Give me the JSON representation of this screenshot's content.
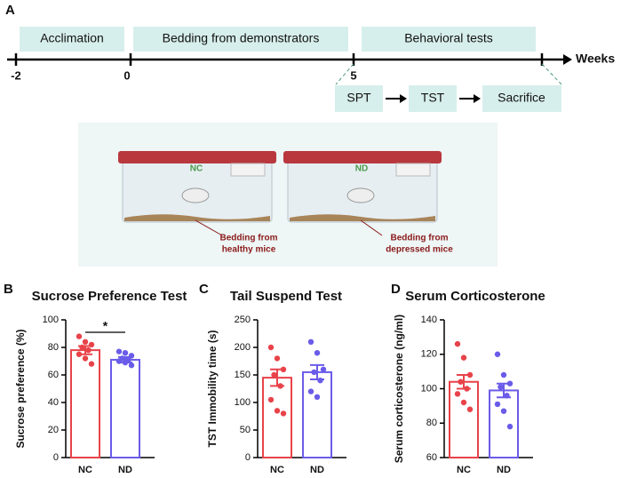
{
  "panel_labels": [
    "A",
    "B",
    "C",
    "D"
  ],
  "timeline": {
    "axis_title": "Weeks",
    "ticks": [
      "-2",
      "0",
      "5"
    ],
    "phases": [
      "Acclimation",
      "Bedding from demonstrators",
      "Behavioral tests"
    ],
    "steps": [
      "SPT",
      "TST",
      "Sacrifice"
    ]
  },
  "illustration": {
    "cages": [
      "NC",
      "ND"
    ],
    "bedding_labels": [
      [
        "Bedding from",
        "healthy mice"
      ],
      [
        "Bedding from",
        "depressed mice"
      ]
    ]
  },
  "chart_data": [
    {
      "type": "bar",
      "title": "Sucrose Preference Test",
      "y_label": "Sucrose preference (%)",
      "categories": [
        "NC",
        "ND"
      ],
      "values": [
        78,
        71
      ],
      "errors": [
        3,
        2
      ],
      "colors": [
        "#e8434a",
        "#6a5ce8"
      ],
      "points": [
        [
          88,
          84,
          82,
          80,
          78,
          75,
          72,
          68
        ],
        [
          77,
          76,
          74,
          72,
          71,
          70,
          69,
          67
        ]
      ],
      "ylim": [
        0,
        100
      ],
      "yticks": [
        0,
        20,
        40,
        60,
        80,
        100
      ],
      "significance": "*"
    },
    {
      "type": "bar",
      "title": "Tail Suspend Test",
      "y_label": "TST Immobility time (s)",
      "categories": [
        "NC",
        "ND"
      ],
      "values": [
        145,
        155
      ],
      "errors": [
        15,
        13
      ],
      "colors": [
        "#e8434a",
        "#6a5ce8"
      ],
      "points": [
        [
          200,
          180,
          160,
          150,
          130,
          105,
          85,
          80
        ],
        [
          210,
          190,
          160,
          155,
          140,
          120,
          110
        ]
      ],
      "ylim": [
        0,
        250
      ],
      "yticks": [
        0,
        50,
        100,
        150,
        200,
        250
      ]
    },
    {
      "type": "bar",
      "title": "Serum Corticosterone",
      "y_label": "Serum corticosterone (ng/ml)",
      "categories": [
        "NC",
        "ND"
      ],
      "values": [
        104,
        99
      ],
      "errors": [
        4,
        4
      ],
      "colors": [
        "#e8434a",
        "#6a5ce8"
      ],
      "points": [
        [
          126,
          118,
          108,
          104,
          100,
          97,
          92,
          88
        ],
        [
          120,
          108,
          103,
          101,
          96,
          91,
          87,
          78
        ]
      ],
      "ylim": [
        60,
        140
      ],
      "yticks": [
        60,
        80,
        100,
        120,
        140
      ]
    }
  ]
}
